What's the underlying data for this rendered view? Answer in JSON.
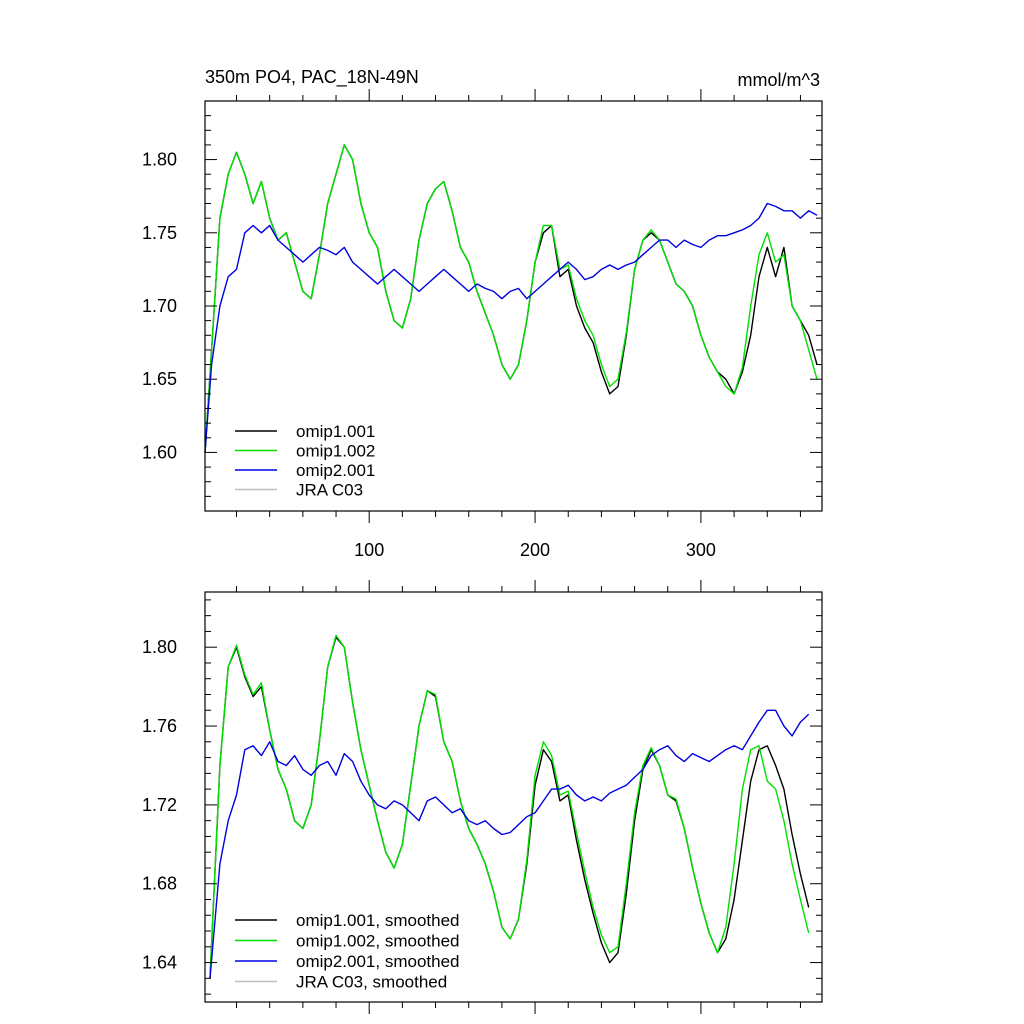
{
  "chart_data": [
    {
      "type": "line",
      "title": "350m PO4, PAC_18N-49N",
      "units": "mmol/m^3",
      "xlim": [
        1,
        373
      ],
      "ylim": [
        1.56,
        1.84
      ],
      "xticks": [
        100,
        200,
        300
      ],
      "xtick_labels": [
        "100",
        "200",
        "300"
      ],
      "yticks": [
        1.6,
        1.65,
        1.7,
        1.75,
        1.8
      ],
      "ytick_labels": [
        "1.60",
        "1.65",
        "1.70",
        "1.75",
        "1.80"
      ],
      "legend": "bottom-left",
      "series": [
        {
          "name": "omip1.001",
          "color": "#000000",
          "x": [
            1,
            5,
            10,
            15,
            20,
            25,
            30,
            35,
            40,
            45,
            50,
            55,
            60,
            65,
            70,
            75,
            80,
            85,
            90,
            95,
            100,
            105,
            110,
            115,
            120,
            125,
            130,
            135,
            140,
            145,
            150,
            155,
            160,
            165,
            170,
            175,
            180,
            185,
            190,
            195,
            200,
            205,
            210,
            215,
            220,
            225,
            230,
            235,
            240,
            245,
            250,
            255,
            260,
            265,
            270,
            275,
            280,
            285,
            290,
            295,
            300,
            305,
            310,
            315,
            320,
            325,
            330,
            335,
            340,
            345,
            350,
            355,
            360,
            365,
            370
          ],
          "y": [
            1.6,
            1.67,
            1.76,
            1.79,
            1.805,
            1.79,
            1.77,
            1.785,
            1.76,
            1.745,
            1.75,
            1.73,
            1.71,
            1.705,
            1.735,
            1.77,
            1.79,
            1.81,
            1.8,
            1.77,
            1.75,
            1.74,
            1.71,
            1.69,
            1.685,
            1.705,
            1.745,
            1.77,
            1.78,
            1.785,
            1.765,
            1.74,
            1.73,
            1.71,
            1.695,
            1.68,
            1.66,
            1.65,
            1.66,
            1.69,
            1.73,
            1.75,
            1.755,
            1.72,
            1.725,
            1.7,
            1.685,
            1.675,
            1.655,
            1.64,
            1.645,
            1.68,
            1.725,
            1.745,
            1.75,
            1.745,
            1.73,
            1.715,
            1.71,
            1.7,
            1.68,
            1.665,
            1.655,
            1.65,
            1.64,
            1.655,
            1.68,
            1.72,
            1.74,
            1.72,
            1.74,
            1.7,
            1.69,
            1.68,
            1.66
          ]
        },
        {
          "name": "omip1.002",
          "color": "#00e000",
          "x": [
            1,
            5,
            10,
            15,
            20,
            25,
            30,
            35,
            40,
            45,
            50,
            55,
            60,
            65,
            70,
            75,
            80,
            85,
            90,
            95,
            100,
            105,
            110,
            115,
            120,
            125,
            130,
            135,
            140,
            145,
            150,
            155,
            160,
            165,
            170,
            175,
            180,
            185,
            190,
            195,
            200,
            205,
            210,
            215,
            220,
            225,
            230,
            235,
            240,
            245,
            250,
            255,
            260,
            265,
            270,
            275,
            280,
            285,
            290,
            295,
            300,
            305,
            310,
            315,
            320,
            325,
            330,
            335,
            340,
            345,
            350,
            355,
            360,
            365,
            370
          ],
          "y": [
            1.6,
            1.67,
            1.76,
            1.79,
            1.805,
            1.79,
            1.77,
            1.785,
            1.76,
            1.745,
            1.75,
            1.73,
            1.71,
            1.705,
            1.735,
            1.77,
            1.79,
            1.81,
            1.8,
            1.77,
            1.75,
            1.74,
            1.71,
            1.69,
            1.685,
            1.705,
            1.745,
            1.77,
            1.78,
            1.785,
            1.765,
            1.74,
            1.73,
            1.71,
            1.695,
            1.68,
            1.66,
            1.65,
            1.66,
            1.69,
            1.73,
            1.755,
            1.755,
            1.725,
            1.728,
            1.705,
            1.69,
            1.68,
            1.66,
            1.645,
            1.65,
            1.682,
            1.725,
            1.745,
            1.752,
            1.745,
            1.73,
            1.715,
            1.71,
            1.7,
            1.68,
            1.665,
            1.655,
            1.645,
            1.64,
            1.658,
            1.7,
            1.735,
            1.75,
            1.73,
            1.735,
            1.7,
            1.69,
            1.67,
            1.65
          ]
        },
        {
          "name": "omip2.001",
          "color": "#0000e0",
          "x": [
            1,
            5,
            10,
            15,
            20,
            25,
            30,
            35,
            40,
            45,
            50,
            55,
            60,
            65,
            70,
            75,
            80,
            85,
            90,
            95,
            100,
            105,
            110,
            115,
            120,
            125,
            130,
            135,
            140,
            145,
            150,
            155,
            160,
            165,
            170,
            175,
            180,
            185,
            190,
            195,
            200,
            205,
            210,
            215,
            220,
            225,
            230,
            235,
            240,
            245,
            250,
            255,
            260,
            265,
            270,
            275,
            280,
            285,
            290,
            295,
            300,
            305,
            310,
            315,
            320,
            325,
            330,
            335,
            340,
            345,
            350,
            355,
            360,
            365,
            370
          ],
          "y": [
            1.6,
            1.66,
            1.7,
            1.72,
            1.725,
            1.75,
            1.755,
            1.75,
            1.755,
            1.745,
            1.74,
            1.735,
            1.73,
            1.735,
            1.74,
            1.738,
            1.735,
            1.74,
            1.73,
            1.725,
            1.72,
            1.715,
            1.72,
            1.725,
            1.72,
            1.715,
            1.71,
            1.715,
            1.72,
            1.725,
            1.72,
            1.715,
            1.71,
            1.715,
            1.712,
            1.71,
            1.705,
            1.71,
            1.712,
            1.705,
            1.71,
            1.715,
            1.72,
            1.725,
            1.73,
            1.725,
            1.718,
            1.72,
            1.725,
            1.728,
            1.725,
            1.728,
            1.73,
            1.735,
            1.74,
            1.745,
            1.745,
            1.74,
            1.745,
            1.742,
            1.74,
            1.745,
            1.748,
            1.748,
            1.75,
            1.752,
            1.755,
            1.76,
            1.77,
            1.768,
            1.765,
            1.765,
            1.76,
            1.765,
            1.762
          ]
        },
        {
          "name": "JRA C03",
          "color": "#c0c0c0",
          "x": [],
          "y": []
        }
      ]
    },
    {
      "type": "line",
      "xlim": [
        1,
        373
      ],
      "ylim": [
        1.62,
        1.828
      ],
      "xticks": [
        100,
        200,
        300
      ],
      "yticks": [
        1.64,
        1.68,
        1.72,
        1.76,
        1.8
      ],
      "ytick_labels": [
        "1.64",
        "1.68",
        "1.72",
        "1.76",
        "1.80"
      ],
      "legend": "bottom-left",
      "series": [
        {
          "name": "omip1.001, smoothed",
          "color": "#000000",
          "x": [
            4,
            10,
            15,
            20,
            25,
            30,
            35,
            40,
            45,
            50,
            55,
            60,
            65,
            70,
            75,
            80,
            85,
            90,
            95,
            100,
            105,
            110,
            115,
            120,
            125,
            130,
            135,
            140,
            145,
            150,
            155,
            160,
            165,
            170,
            175,
            180,
            185,
            190,
            195,
            200,
            205,
            210,
            215,
            220,
            225,
            230,
            235,
            240,
            245,
            250,
            255,
            260,
            265,
            270,
            275,
            280,
            285,
            290,
            295,
            300,
            305,
            310,
            315,
            320,
            325,
            330,
            335,
            340,
            345,
            350,
            355,
            360,
            365
          ],
          "y": [
            1.632,
            1.74,
            1.79,
            1.8,
            1.785,
            1.775,
            1.78,
            1.758,
            1.738,
            1.728,
            1.712,
            1.708,
            1.72,
            1.752,
            1.79,
            1.805,
            1.8,
            1.772,
            1.748,
            1.73,
            1.712,
            1.696,
            1.688,
            1.7,
            1.73,
            1.76,
            1.778,
            1.775,
            1.752,
            1.742,
            1.722,
            1.708,
            1.7,
            1.69,
            1.676,
            1.658,
            1.652,
            1.662,
            1.69,
            1.73,
            1.748,
            1.742,
            1.722,
            1.725,
            1.702,
            1.682,
            1.665,
            1.65,
            1.64,
            1.645,
            1.675,
            1.712,
            1.738,
            1.748,
            1.74,
            1.725,
            1.722,
            1.708,
            1.688,
            1.67,
            1.655,
            1.645,
            1.652,
            1.672,
            1.702,
            1.732,
            1.748,
            1.75,
            1.74,
            1.728,
            1.705,
            1.685,
            1.668
          ]
        },
        {
          "name": "omip1.002, smoothed",
          "color": "#00e000",
          "x": [
            4,
            10,
            15,
            20,
            25,
            30,
            35,
            40,
            45,
            50,
            55,
            60,
            65,
            70,
            75,
            80,
            85,
            90,
            95,
            100,
            105,
            110,
            115,
            120,
            125,
            130,
            135,
            140,
            145,
            150,
            155,
            160,
            165,
            170,
            175,
            180,
            185,
            190,
            195,
            200,
            205,
            210,
            215,
            220,
            225,
            230,
            235,
            240,
            245,
            250,
            255,
            260,
            265,
            270,
            275,
            280,
            285,
            290,
            295,
            300,
            305,
            310,
            315,
            320,
            325,
            330,
            335,
            340,
            345,
            350,
            355,
            360,
            365
          ],
          "y": [
            1.632,
            1.74,
            1.79,
            1.801,
            1.786,
            1.776,
            1.782,
            1.758,
            1.738,
            1.728,
            1.712,
            1.708,
            1.72,
            1.752,
            1.79,
            1.806,
            1.8,
            1.772,
            1.748,
            1.73,
            1.712,
            1.696,
            1.688,
            1.7,
            1.73,
            1.76,
            1.778,
            1.776,
            1.752,
            1.742,
            1.722,
            1.708,
            1.7,
            1.69,
            1.676,
            1.658,
            1.652,
            1.662,
            1.692,
            1.735,
            1.752,
            1.745,
            1.725,
            1.727,
            1.706,
            1.686,
            1.668,
            1.654,
            1.645,
            1.648,
            1.68,
            1.716,
            1.74,
            1.749,
            1.74,
            1.725,
            1.723,
            1.708,
            1.688,
            1.67,
            1.655,
            1.645,
            1.658,
            1.69,
            1.728,
            1.748,
            1.75,
            1.732,
            1.728,
            1.712,
            1.69,
            1.672,
            1.655
          ]
        },
        {
          "name": "omip2.001, smoothed",
          "color": "#0000e0",
          "x": [
            4,
            10,
            15,
            20,
            25,
            30,
            35,
            40,
            45,
            50,
            55,
            60,
            65,
            70,
            75,
            80,
            85,
            90,
            95,
            100,
            105,
            110,
            115,
            120,
            125,
            130,
            135,
            140,
            145,
            150,
            155,
            160,
            165,
            170,
            175,
            180,
            185,
            190,
            195,
            200,
            205,
            210,
            215,
            220,
            225,
            230,
            235,
            240,
            245,
            250,
            255,
            260,
            265,
            270,
            275,
            280,
            285,
            290,
            295,
            300,
            305,
            310,
            315,
            320,
            325,
            330,
            335,
            340,
            345,
            350,
            355,
            360,
            365
          ],
          "y": [
            1.632,
            1.69,
            1.712,
            1.725,
            1.748,
            1.75,
            1.745,
            1.752,
            1.742,
            1.74,
            1.745,
            1.738,
            1.735,
            1.74,
            1.742,
            1.735,
            1.746,
            1.742,
            1.732,
            1.725,
            1.72,
            1.718,
            1.722,
            1.72,
            1.716,
            1.712,
            1.722,
            1.724,
            1.72,
            1.716,
            1.718,
            1.712,
            1.71,
            1.712,
            1.708,
            1.705,
            1.706,
            1.71,
            1.714,
            1.716,
            1.722,
            1.728,
            1.728,
            1.73,
            1.725,
            1.722,
            1.724,
            1.722,
            1.726,
            1.728,
            1.73,
            1.734,
            1.738,
            1.745,
            1.748,
            1.75,
            1.745,
            1.742,
            1.746,
            1.744,
            1.742,
            1.745,
            1.748,
            1.75,
            1.748,
            1.755,
            1.762,
            1.768,
            1.768,
            1.76,
            1.755,
            1.762,
            1.766
          ]
        },
        {
          "name": "JRA C03, smoothed",
          "color": "#c0c0c0",
          "x": [],
          "y": []
        }
      ]
    }
  ]
}
